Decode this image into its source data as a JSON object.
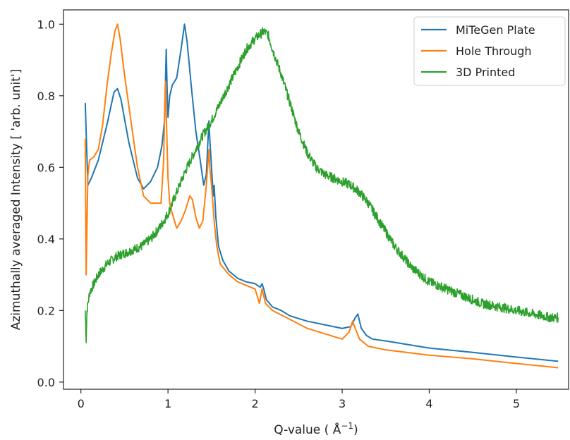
{
  "chart_data": {
    "type": "line",
    "xlabel": "Q-value ( Å",
    "xlabel_unit_sup": "−1",
    "xlabel_close": ")",
    "ylabel": "Azimuthally averaged Intensity [ 'arb. unit']",
    "xlim": [
      -0.2,
      5.6
    ],
    "ylim": [
      -0.02,
      1.04
    ],
    "x_ticks": [
      0,
      1,
      2,
      3,
      4,
      5
    ],
    "x_tick_labels": [
      "0",
      "1",
      "2",
      "3",
      "4",
      "5"
    ],
    "y_ticks": [
      0.0,
      0.2,
      0.4,
      0.6,
      0.8,
      1.0
    ],
    "y_tick_labels": [
      "0.0",
      "0.2",
      "0.4",
      "0.6",
      "0.8",
      "1.0"
    ],
    "grid": false,
    "legend_position": "top-right",
    "series": [
      {
        "name": "MiTeGen Plate",
        "color": "#1f77b4",
        "noise": 0,
        "x": [
          0.05,
          0.06,
          0.08,
          0.12,
          0.2,
          0.3,
          0.38,
          0.42,
          0.46,
          0.55,
          0.65,
          0.72,
          0.8,
          0.88,
          0.93,
          0.96,
          0.98,
          0.99,
          1.0,
          1.02,
          1.05,
          1.1,
          1.15,
          1.19,
          1.22,
          1.27,
          1.32,
          1.37,
          1.41,
          1.44,
          1.46,
          1.47,
          1.48,
          1.5,
          1.52,
          1.53,
          1.55,
          1.58,
          1.63,
          1.7,
          1.8,
          1.9,
          2.0,
          2.03,
          2.06,
          2.08,
          2.1,
          2.13,
          2.2,
          2.3,
          2.4,
          2.6,
          2.8,
          3.0,
          3.1,
          3.15,
          3.18,
          3.22,
          3.28,
          3.35,
          3.5,
          4.0,
          4.5,
          5.0,
          5.48
        ],
        "y": [
          0.78,
          0.7,
          0.55,
          0.57,
          0.62,
          0.72,
          0.81,
          0.82,
          0.79,
          0.67,
          0.57,
          0.54,
          0.56,
          0.6,
          0.66,
          0.73,
          0.93,
          0.82,
          0.74,
          0.8,
          0.83,
          0.85,
          0.93,
          1.0,
          0.95,
          0.82,
          0.7,
          0.62,
          0.55,
          0.58,
          0.68,
          0.73,
          0.68,
          0.6,
          0.52,
          0.55,
          0.46,
          0.38,
          0.34,
          0.31,
          0.29,
          0.28,
          0.275,
          0.27,
          0.265,
          0.275,
          0.26,
          0.23,
          0.21,
          0.2,
          0.185,
          0.17,
          0.16,
          0.15,
          0.155,
          0.18,
          0.19,
          0.15,
          0.13,
          0.12,
          0.115,
          0.095,
          0.083,
          0.07,
          0.058
        ]
      },
      {
        "name": "Hole Through",
        "color": "#ff7f0e",
        "noise": 0,
        "x": [
          0.05,
          0.06,
          0.08,
          0.1,
          0.15,
          0.2,
          0.25,
          0.3,
          0.35,
          0.39,
          0.42,
          0.45,
          0.5,
          0.58,
          0.65,
          0.72,
          0.8,
          0.88,
          0.92,
          0.95,
          0.97,
          0.98,
          1.0,
          1.02,
          1.05,
          1.1,
          1.15,
          1.2,
          1.25,
          1.28,
          1.32,
          1.36,
          1.4,
          1.44,
          1.47,
          1.48,
          1.5,
          1.53,
          1.56,
          1.6,
          1.7,
          1.8,
          1.9,
          2.0,
          2.05,
          2.08,
          2.12,
          2.2,
          2.4,
          2.6,
          2.8,
          3.0,
          3.08,
          3.12,
          3.15,
          3.2,
          3.3,
          3.5,
          4.0,
          4.5,
          5.0,
          5.48
        ],
        "y": [
          0.68,
          0.3,
          0.58,
          0.62,
          0.63,
          0.65,
          0.72,
          0.83,
          0.92,
          0.98,
          1.0,
          0.96,
          0.86,
          0.72,
          0.6,
          0.52,
          0.5,
          0.5,
          0.5,
          0.62,
          0.84,
          0.75,
          0.57,
          0.5,
          0.47,
          0.43,
          0.45,
          0.48,
          0.52,
          0.51,
          0.46,
          0.43,
          0.45,
          0.55,
          0.65,
          0.6,
          0.55,
          0.45,
          0.38,
          0.33,
          0.3,
          0.28,
          0.27,
          0.26,
          0.22,
          0.26,
          0.22,
          0.2,
          0.175,
          0.15,
          0.135,
          0.12,
          0.14,
          0.17,
          0.15,
          0.12,
          0.1,
          0.09,
          0.075,
          0.065,
          0.052,
          0.04
        ]
      },
      {
        "name": "3D Printed",
        "color": "#2ca02c",
        "noise": 0.012,
        "x": [
          0.05,
          0.06,
          0.07,
          0.1,
          0.2,
          0.3,
          0.4,
          0.5,
          0.6,
          0.7,
          0.8,
          0.9,
          1.0,
          1.1,
          1.2,
          1.3,
          1.4,
          1.5,
          1.6,
          1.7,
          1.8,
          1.9,
          2.0,
          2.05,
          2.1,
          2.15,
          2.2,
          2.3,
          2.4,
          2.5,
          2.6,
          2.7,
          2.8,
          2.9,
          3.0,
          3.1,
          3.2,
          3.3,
          3.4,
          3.5,
          3.6,
          3.7,
          3.8,
          3.9,
          4.0,
          4.1,
          4.2,
          4.4,
          4.6,
          4.8,
          5.0,
          5.2,
          5.4,
          5.48
        ],
        "y": [
          0.2,
          0.12,
          0.2,
          0.25,
          0.3,
          0.33,
          0.35,
          0.36,
          0.37,
          0.38,
          0.4,
          0.43,
          0.47,
          0.53,
          0.59,
          0.64,
          0.69,
          0.73,
          0.78,
          0.83,
          0.88,
          0.93,
          0.96,
          0.97,
          0.98,
          0.97,
          0.93,
          0.86,
          0.78,
          0.7,
          0.64,
          0.6,
          0.58,
          0.57,
          0.56,
          0.55,
          0.53,
          0.5,
          0.46,
          0.42,
          0.38,
          0.35,
          0.32,
          0.3,
          0.28,
          0.27,
          0.26,
          0.24,
          0.22,
          0.21,
          0.2,
          0.19,
          0.18,
          0.18
        ]
      }
    ]
  }
}
